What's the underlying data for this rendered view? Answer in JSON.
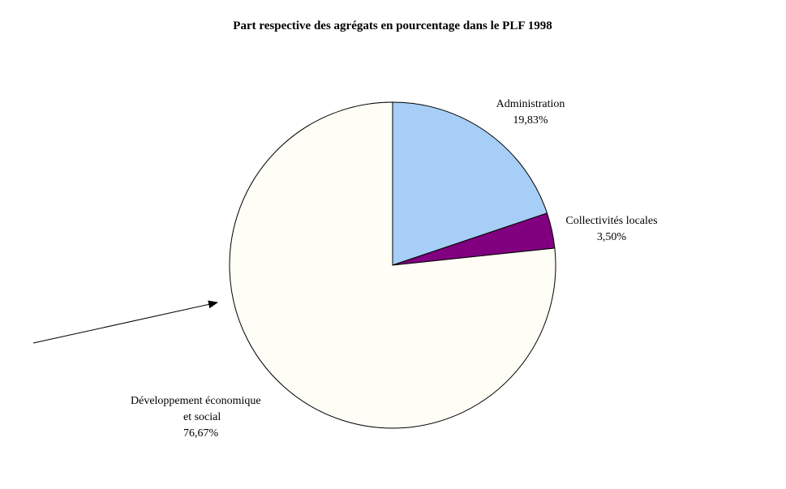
{
  "chart_data": {
    "type": "pie",
    "title": "Part respective des agrégats en pourcentage dans le PLF 1998",
    "slices": [
      {
        "label": "Administration",
        "value": 19.83,
        "value_label": "19,83%",
        "color": "#a6cef6"
      },
      {
        "label": "Collectivités locales",
        "value": 3.5,
        "value_label": "3,50%",
        "color": "#800080"
      },
      {
        "label_lines": [
          "Développement économique",
          "et social"
        ],
        "value": 76.67,
        "value_label": "76,67%",
        "color": "#fffef6"
      }
    ],
    "start_angle": "12 o'clock",
    "direction": "clockwise",
    "legend": "none",
    "annotations": [
      {
        "type": "arrow",
        "points_to": "Développement économique et social"
      }
    ]
  }
}
